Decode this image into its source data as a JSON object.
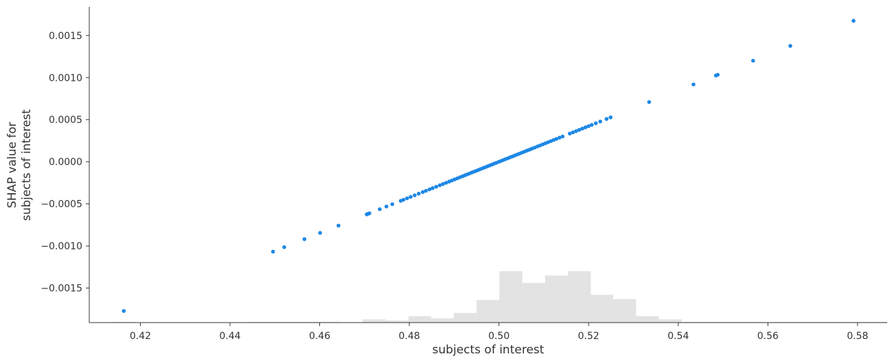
{
  "chart_data": {
    "type": "scatter",
    "xlabel": "subjects of interest",
    "ylabel_lines": [
      "SHAP value for",
      "subjects of interest"
    ],
    "xlim": [
      0.4086,
      0.5866
    ],
    "ylim": [
      -0.00191,
      0.00184
    ],
    "x_ticks": [
      0.42,
      0.44,
      0.46,
      0.48,
      0.5,
      0.52,
      0.54,
      0.56,
      0.58
    ],
    "x_tick_labels": [
      "0.42",
      "0.44",
      "0.46",
      "0.48",
      "0.50",
      "0.52",
      "0.54",
      "0.56",
      "0.58"
    ],
    "y_ticks": [
      0.0015,
      0.001,
      0.0005,
      0.0,
      -0.0005,
      -0.001,
      -0.0015
    ],
    "y_tick_labels": [
      "0.0015",
      "0.0010",
      "0.0005",
      "0.0000",
      "−0.0005",
      "−0.0010",
      "−0.0015"
    ],
    "grid": false,
    "point_color": "#1e88e5",
    "histogram_color": "#e3e3e3",
    "slope": 0.02117,
    "center": 0.5,
    "points_x": [
      0.4163,
      0.4496,
      0.4521,
      0.4566,
      0.4601,
      0.4642,
      0.4705,
      0.4708,
      0.4711,
      0.4734,
      0.4749,
      0.4762,
      0.4781,
      0.4787,
      0.4795,
      0.4803,
      0.4812,
      0.4821,
      0.483,
      0.4837,
      0.4845,
      0.4852,
      0.486,
      0.4868,
      0.4875,
      0.4882,
      0.4889,
      0.4895,
      0.4901,
      0.4907,
      0.4913,
      0.4919,
      0.4924,
      0.4929,
      0.4934,
      0.4939,
      0.4944,
      0.4949,
      0.4954,
      0.4959,
      0.4964,
      0.4969,
      0.4974,
      0.4979,
      0.4984,
      0.4989,
      0.4994,
      0.4999,
      0.5004,
      0.5009,
      0.5014,
      0.5019,
      0.5024,
      0.5029,
      0.5034,
      0.5039,
      0.5044,
      0.5049,
      0.5054,
      0.5059,
      0.5064,
      0.5069,
      0.5074,
      0.508,
      0.5086,
      0.5092,
      0.5098,
      0.5104,
      0.511,
      0.5116,
      0.5122,
      0.5128,
      0.5135,
      0.5142,
      0.5158,
      0.5165,
      0.5172,
      0.5179,
      0.5186,
      0.5193,
      0.52,
      0.5207,
      0.5216,
      0.5226,
      0.524,
      0.5249,
      0.5335,
      0.5434,
      0.5484,
      0.5488,
      0.5567,
      0.565,
      0.5791
    ],
    "histogram": {
      "bin_edges": [
        0.4086,
        0.4137,
        0.4188,
        0.4238,
        0.4289,
        0.434,
        0.4391,
        0.4442,
        0.4493,
        0.4543,
        0.4594,
        0.4645,
        0.4696,
        0.4747,
        0.4798,
        0.4849,
        0.4899,
        0.495,
        0.5001,
        0.5052,
        0.5103,
        0.5154,
        0.5205,
        0.5255,
        0.5306,
        0.5357,
        0.5408,
        0.5459,
        0.551,
        0.556,
        0.5611,
        0.5662,
        0.5713,
        0.5764,
        0.5815,
        0.5866
      ],
      "counts": [
        0,
        0.5,
        0,
        0,
        0,
        0,
        0,
        0.5,
        0.5,
        0.5,
        0.5,
        0,
        3,
        2,
        6,
        4,
        9,
        21,
        48,
        37,
        44,
        48,
        26,
        22,
        6,
        3,
        0.5,
        0.5,
        0.5,
        0.5,
        0.5,
        0.5,
        0.5,
        0.5,
        0.5
      ]
    }
  }
}
